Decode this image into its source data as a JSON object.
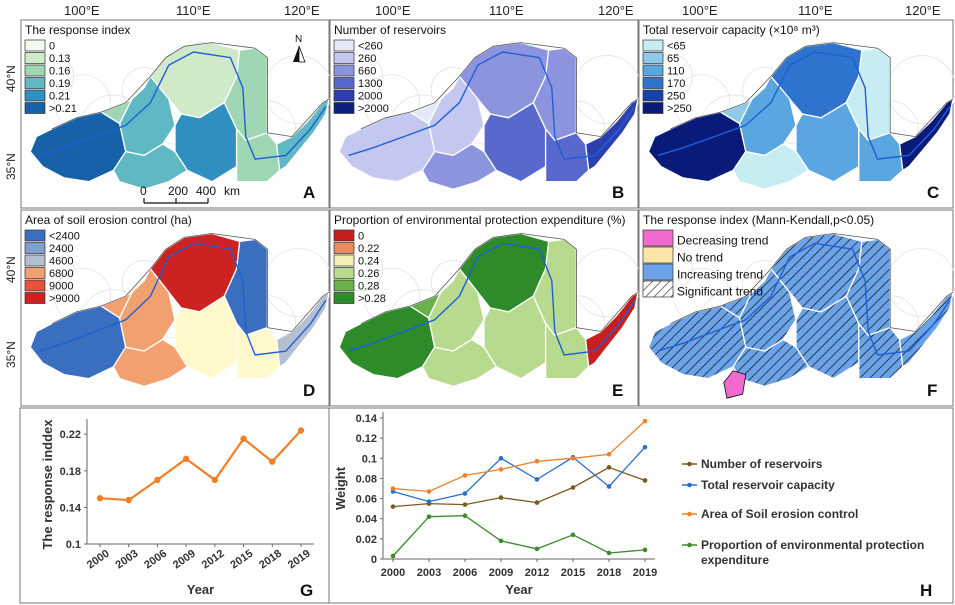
{
  "axis_top": {
    "panel1": [
      "100°E",
      "110°E",
      "120°E"
    ],
    "panel2": [
      "100°E",
      "110°E",
      "120°E"
    ],
    "panel3": [
      "100°E",
      "110°E",
      "120°E"
    ]
  },
  "axis_left": {
    "row1": [
      "40°N",
      "35°N"
    ],
    "row2": [
      "40°N",
      "35°N"
    ]
  },
  "panels": [
    {
      "letter": "A",
      "title": "The response index",
      "legend": [
        {
          "label": "0",
          "color": "#f2f9ee"
        },
        {
          "label": "0.13",
          "color": "#cfe9c9"
        },
        {
          "label": "0.16",
          "color": "#9fd6b3"
        },
        {
          "label": "0.19",
          "color": "#5fb8c4"
        },
        {
          "label": "0.21",
          "color": "#2f8fc0"
        },
        {
          "label": ">0.21",
          "color": "#1761a8"
        }
      ],
      "regions": [
        "#1761a8",
        "#cfe9c9",
        "#9fd6b3",
        "#5fb8c4",
        "#2f8fc0",
        "#9fd6b3",
        "#5fb8c4",
        "#9fd6b3",
        "#5fb8c4"
      ]
    },
    {
      "letter": "B",
      "title": "Number of reservoirs",
      "legend": [
        {
          "label": "<260",
          "color": "#e6e8f8"
        },
        {
          "label": "260",
          "color": "#c4c8f0"
        },
        {
          "label": "660",
          "color": "#8c94e0"
        },
        {
          "label": "1300",
          "color": "#5868cc"
        },
        {
          "label": "2000",
          "color": "#2c3fae"
        },
        {
          "label": ">2000",
          "color": "#0d1f7f"
        }
      ],
      "regions": [
        "#c4c8f0",
        "#8c94e0",
        "#8c94e0",
        "#c4c8f0",
        "#5868cc",
        "#e6e8f8",
        "#8c94e0",
        "#5868cc",
        "#2c3fae"
      ]
    },
    {
      "letter": "C",
      "title": "Total reservoir capacity (×10⁸ m³)",
      "legend": [
        {
          "label": "<65",
          "color": "#c7ecf2"
        },
        {
          "label": "65",
          "color": "#8fcaeb"
        },
        {
          "label": "110",
          "color": "#5aa6e0"
        },
        {
          "label": "170",
          "color": "#2e74cf"
        },
        {
          "label": "250",
          "color": "#1643a8"
        },
        {
          "label": ">250",
          "color": "#0a1a78"
        }
      ],
      "regions": [
        "#0a1a78",
        "#2e74cf",
        "#c7ecf2",
        "#5aa6e0",
        "#5aa6e0",
        "#8fcaeb",
        "#c7ecf2",
        "#5aa6e0",
        "#0a1a78"
      ]
    },
    {
      "letter": "D",
      "title": "Area of soil erosion control (ha)",
      "legend": [
        {
          "label": "<2400",
          "color": "#3a6fbf"
        },
        {
          "label": "2400",
          "color": "#7f9fd1"
        },
        {
          "label": "4600",
          "color": "#b4c0d2"
        },
        {
          "label": "6800",
          "color": "#f3a070"
        },
        {
          "label": "9000",
          "color": "#e8513c"
        },
        {
          "label": ">9000",
          "color": "#cc2222"
        }
      ],
      "regions": [
        "#3a6fbf",
        "#cc2222",
        "#3a6fbf",
        "#f3a070",
        "#fff9cc",
        "#f3a070",
        "#f3a070",
        "#fff9cc",
        "#b4c0d2"
      ]
    },
    {
      "letter": "E",
      "title": "Proportion of environmental protection expenditure (%)",
      "legend": [
        {
          "label": "0",
          "color": "#c81e1e"
        },
        {
          "label": "0.22",
          "color": "#e88c60"
        },
        {
          "label": "0.24",
          "color": "#f5f0b8"
        },
        {
          "label": "0.26",
          "color": "#b8da8e"
        },
        {
          "label": "0.28",
          "color": "#6bb04a"
        },
        {
          "label": ">0.28",
          "color": "#2e8b2a"
        }
      ],
      "regions": [
        "#2e8b2a",
        "#2e8b2a",
        "#b8da8e",
        "#b8da8e",
        "#b8da8e",
        "#6bb04a",
        "#b8da8e",
        "#b8da8e",
        "#c81e1e"
      ]
    },
    {
      "letter": "F",
      "title": "The response index (Mann-Kendall,p<0.05)",
      "legend": [
        {
          "label": "Decreasing trend",
          "color": "#f06ad0"
        },
        {
          "label": "No trend",
          "color": "#fbe6a8"
        },
        {
          "label": "Increasing trend",
          "color": "#6ba3e8"
        },
        {
          "label": "Significant trend",
          "color": "hatch"
        }
      ],
      "regions": [
        "#6ba3e8",
        "#6ba3e8",
        "#6ba3e8",
        "#6ba3e8",
        "#6ba3e8",
        "#6ba3e8",
        "#6ba3e8",
        "#6ba3e8",
        "#6ba3e8"
      ]
    }
  ],
  "scalebar": {
    "ticks": [
      "0",
      "200",
      "400"
    ],
    "unit": "km"
  },
  "compass": "N",
  "chart_data": [
    {
      "type": "line",
      "letter": "G",
      "x": [
        "2000",
        "2003",
        "2006",
        "2009",
        "2012",
        "2015",
        "2018",
        "2019"
      ],
      "series": [
        {
          "name": "The response index",
          "values": [
            0.15,
            0.148,
            0.17,
            0.193,
            0.17,
            0.215,
            0.19,
            0.224
          ],
          "color": "#f07f2a"
        }
      ],
      "xlabel": "Year",
      "ylabel": "The response inddex",
      "yticks": [
        "0.1",
        "0.14",
        "0.18",
        "0.22"
      ],
      "ylim": [
        0.1,
        0.23
      ]
    },
    {
      "type": "line",
      "letter": "H",
      "x": [
        "2000",
        "2003",
        "2006",
        "2009",
        "2012",
        "2015",
        "2018",
        "2019"
      ],
      "series": [
        {
          "name": "Number of reservoirs",
          "values": [
            0.052,
            0.055,
            0.054,
            0.061,
            0.056,
            0.071,
            0.091,
            0.078
          ],
          "color": "#7a5a1e"
        },
        {
          "name": "Total reservoir capacity",
          "values": [
            0.067,
            0.057,
            0.065,
            0.1,
            0.079,
            0.101,
            0.072,
            0.111
          ],
          "color": "#2a6fd0"
        },
        {
          "name": "Area of Soil erosion control",
          "values": [
            0.07,
            0.067,
            0.083,
            0.089,
            0.097,
            0.1,
            0.104,
            0.137
          ],
          "color": "#f07f2a"
        },
        {
          "name": "Proportion of environmental protection expenditure",
          "values": [
            0.003,
            0.042,
            0.043,
            0.018,
            0.01,
            0.024,
            0.006,
            0.009
          ],
          "color": "#3c8a2e"
        }
      ],
      "xlabel": "Year",
      "ylabel": "Weight",
      "yticks": [
        "0",
        "0.02",
        "0.04",
        "0.06",
        "0.08",
        "0.1",
        "0.12",
        "0.14"
      ],
      "ylim": [
        0,
        0.14
      ]
    }
  ]
}
